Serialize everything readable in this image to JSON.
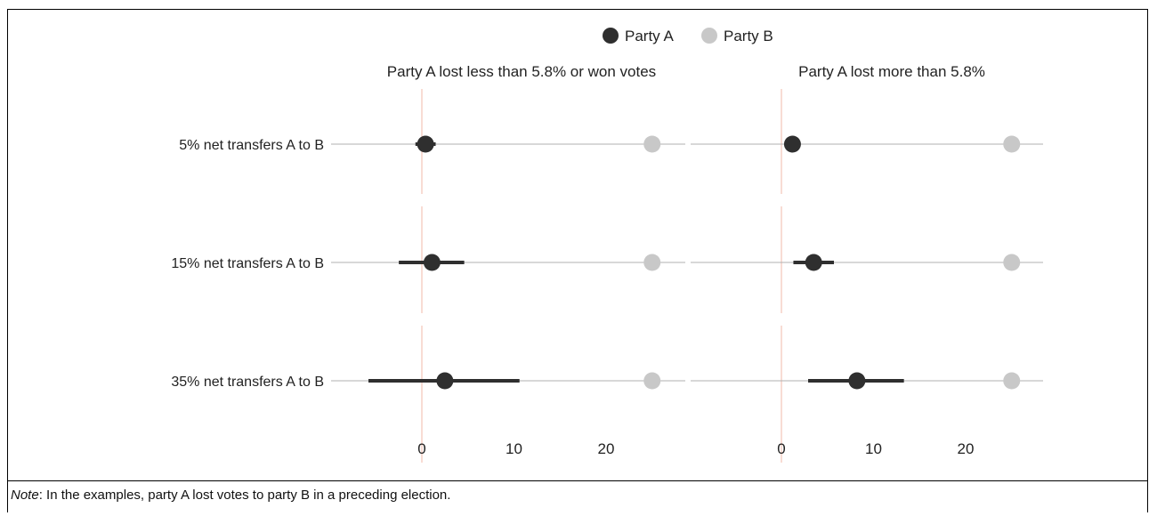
{
  "chart_data": {
    "type": "scatter",
    "legend": {
      "position": "top",
      "entries": [
        {
          "name": "Party A",
          "color": "#2f2f2f"
        },
        {
          "name": "Party B",
          "color": "#c8c8c8"
        }
      ]
    },
    "rows": [
      "5% net transfers A to B",
      "15% net transfers A to B",
      "35% net transfers A to B"
    ],
    "x_ticks": [
      0,
      10,
      20
    ],
    "xlim": [
      -10,
      29
    ],
    "reference_line": 0,
    "panels": [
      {
        "title": "Party A lost less than 5.8% or won votes",
        "points": [
          {
            "row": 0,
            "a": 0.4,
            "a_low": -0.7,
            "a_high": 1.5,
            "b": 25
          },
          {
            "row": 1,
            "a": 1.1,
            "a_low": -2.5,
            "a_high": 4.6,
            "b": 25
          },
          {
            "row": 2,
            "a": 2.5,
            "a_low": -5.8,
            "a_high": 10.6,
            "b": 25
          }
        ]
      },
      {
        "title": "Party A lost more than 5.8%",
        "points": [
          {
            "row": 0,
            "a": 1.2,
            "a_low": 1.2,
            "a_high": 1.2,
            "b": 25
          },
          {
            "row": 1,
            "a": 3.5,
            "a_low": 1.3,
            "a_high": 5.7,
            "b": 25
          },
          {
            "row": 2,
            "a": 8.2,
            "a_low": 2.9,
            "a_high": 13.3,
            "b": 25
          }
        ]
      }
    ]
  },
  "note": {
    "label": "Note",
    "text": ": In the examples, party A lost votes to party B in a preceding election."
  }
}
